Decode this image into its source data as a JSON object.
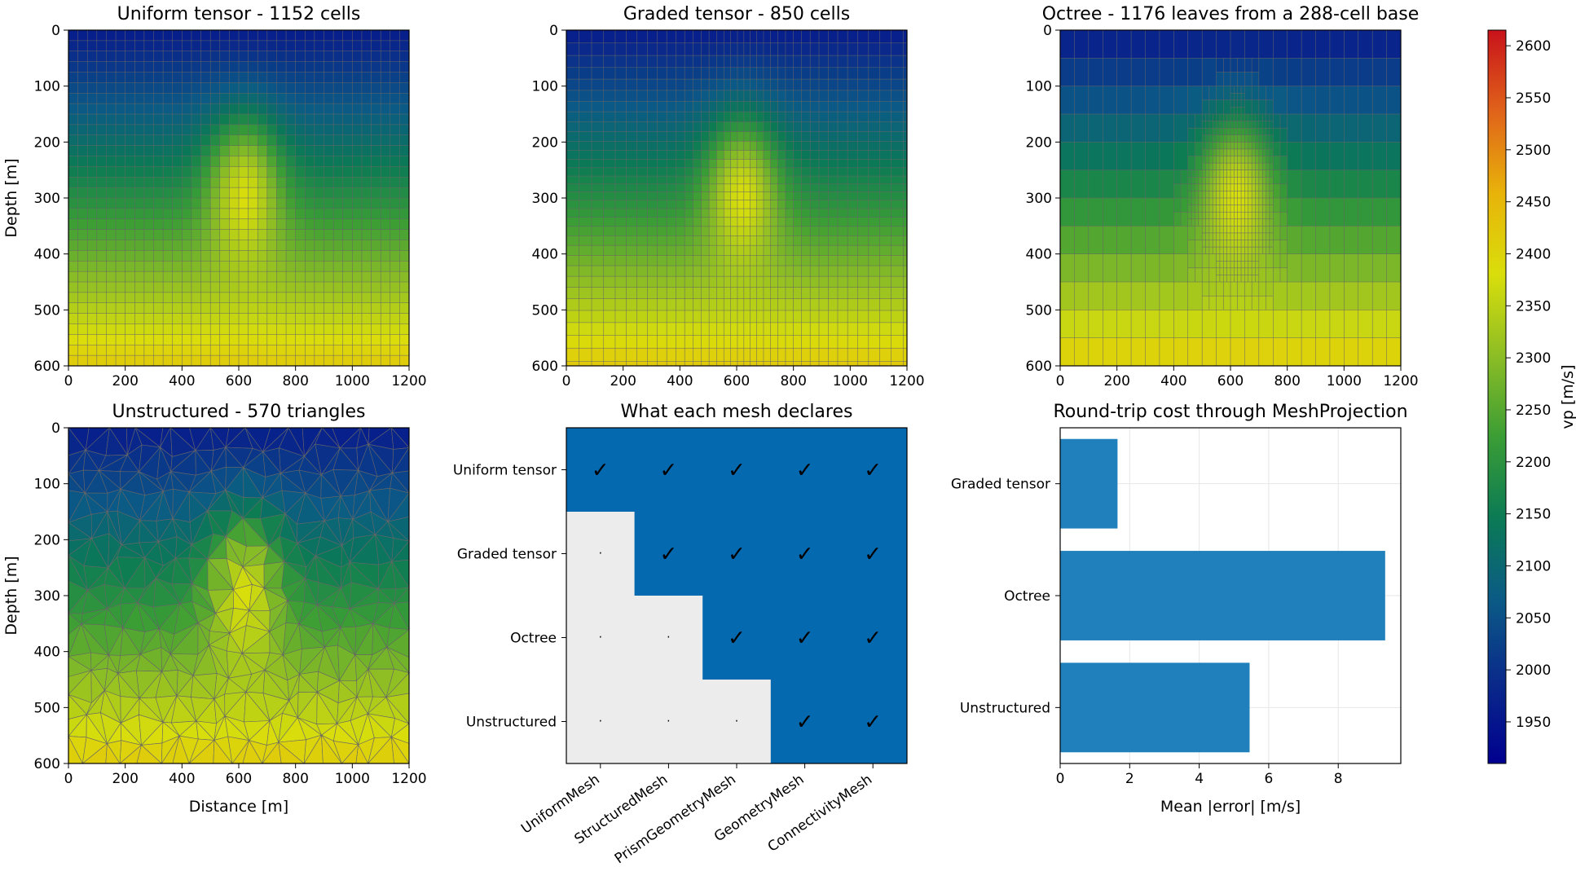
{
  "colormap": {
    "label": "vp [m/s]",
    "range": [
      1910,
      2615
    ],
    "ticks": [
      1950,
      2000,
      2050,
      2100,
      2150,
      2200,
      2250,
      2300,
      2350,
      2400,
      2450,
      2500,
      2550,
      2600
    ],
    "stops": [
      "#00008f",
      "#0a2a8a",
      "#0b5a86",
      "#0b7a55",
      "#3a9d35",
      "#8cbd25",
      "#d9de0b",
      "#e8b30a",
      "#e0631a",
      "#c8121a"
    ]
  },
  "chart_data": [
    {
      "type": "heatmap",
      "title": "Uniform tensor - 1152 cells",
      "xlabel": "",
      "ylabel": "Depth [m]",
      "xlim": [
        0,
        1200
      ],
      "ylim": [
        600,
        0
      ],
      "xticks": [
        0,
        200,
        400,
        600,
        800,
        1000,
        1200
      ],
      "yticks": [
        0,
        100,
        200,
        300,
        400,
        500,
        600
      ],
      "field": {
        "background_top": 1960,
        "background_bottom": 2420,
        "anomaly_center": [
          620,
          270
        ],
        "anomaly_amplitude": 200
      }
    },
    {
      "type": "heatmap",
      "title": "Graded tensor - 850 cells",
      "xlabel": "",
      "ylabel": "",
      "xlim": [
        0,
        1200
      ],
      "ylim": [
        600,
        0
      ],
      "xticks": [
        0,
        200,
        400,
        600,
        800,
        1000,
        1200
      ],
      "yticks": [
        0,
        100,
        200,
        300,
        400,
        500,
        600
      ]
    },
    {
      "type": "heatmap",
      "title": "Octree - 1176 leaves from a 288-cell base",
      "xlabel": "",
      "ylabel": "",
      "xlim": [
        0,
        1200
      ],
      "ylim": [
        600,
        0
      ],
      "xticks": [
        0,
        200,
        400,
        600,
        800,
        1000,
        1200
      ],
      "yticks": [
        0,
        100,
        200,
        300,
        400,
        500,
        600
      ]
    },
    {
      "type": "heatmap",
      "title": "Unstructured - 570 triangles",
      "xlabel": "Distance [m]",
      "ylabel": "Depth [m]",
      "xlim": [
        0,
        1200
      ],
      "ylim": [
        600,
        0
      ],
      "xticks": [
        0,
        200,
        400,
        600,
        800,
        1000,
        1200
      ],
      "yticks": [
        0,
        100,
        200,
        300,
        400,
        500,
        600
      ]
    },
    {
      "type": "table",
      "title": "What each mesh declares",
      "rows": [
        "Uniform tensor",
        "Graded tensor",
        "Octree",
        "Unstructured"
      ],
      "columns": [
        "UniformMesh",
        "StructuredMesh",
        "PrismGeometryMesh",
        "GeometryMesh",
        "ConnectivityMesh"
      ],
      "values": [
        [
          1,
          1,
          1,
          1,
          1
        ],
        [
          0,
          1,
          1,
          1,
          1
        ],
        [
          0,
          0,
          1,
          1,
          1
        ],
        [
          0,
          0,
          0,
          1,
          1
        ]
      ],
      "true_mark": "✓",
      "false_mark": "·",
      "true_color": "#0569b0",
      "false_color": "#ececec"
    },
    {
      "type": "bar",
      "orientation": "horizontal",
      "title": "Round-trip cost through MeshProjection",
      "categories": [
        "Graded tensor",
        "Octree",
        "Unstructured"
      ],
      "values": [
        1.65,
        9.35,
        5.45
      ],
      "xlabel": "Mean |error| [m/s]",
      "xlim": [
        0,
        9.8
      ],
      "xticks": [
        0,
        2,
        4,
        6,
        8
      ],
      "grid": true,
      "color": "#1f80bb"
    }
  ]
}
